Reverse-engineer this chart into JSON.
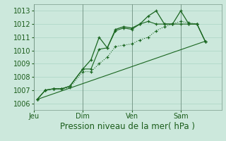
{
  "background_color": "#cce8dc",
  "plot_bg_color": "#cce8dc",
  "grid_color": "#aad4c4",
  "line_color": "#1a6620",
  "ylim": [
    1005.5,
    1013.5
  ],
  "yticks": [
    1006,
    1007,
    1008,
    1009,
    1010,
    1011,
    1012,
    1013
  ],
  "xlabel": "Pression niveau de la mer( hPa )",
  "xlabel_fontsize": 8.5,
  "tick_fontsize": 7,
  "figsize": [
    3.2,
    2.0
  ],
  "dpi": 100,
  "day_positions": [
    0,
    3,
    6,
    9
  ],
  "day_labels": [
    "Jeu",
    "Dim",
    "Ven",
    "Sam"
  ],
  "xlim": [
    0,
    11.5
  ],
  "series1_x": [
    0.2,
    0.7,
    1.2,
    1.7,
    2.2,
    3.0,
    3.5,
    4.0,
    4.5,
    5.0,
    5.5,
    6.0,
    6.5,
    7.0,
    7.5,
    8.0,
    8.5,
    9.0,
    9.5,
    10.0,
    10.5
  ],
  "series1_y": [
    1006.3,
    1007.0,
    1007.1,
    1007.1,
    1007.3,
    1008.6,
    1009.3,
    1011.0,
    1010.2,
    1011.6,
    1011.8,
    1011.7,
    1012.0,
    1012.6,
    1013.0,
    1012.0,
    1012.0,
    1013.0,
    1012.0,
    1012.0,
    1010.7
  ],
  "series2_x": [
    0.2,
    0.7,
    1.2,
    1.7,
    2.2,
    3.0,
    3.5,
    4.0,
    4.5,
    5.0,
    5.5,
    6.0,
    6.5,
    7.0,
    7.5,
    8.0,
    8.5,
    9.0,
    9.5,
    10.0,
    10.5
  ],
  "series2_y": [
    1006.3,
    1007.0,
    1007.1,
    1007.1,
    1007.3,
    1008.6,
    1008.6,
    1010.1,
    1010.2,
    1011.5,
    1011.7,
    1011.6,
    1012.0,
    1012.2,
    1012.0,
    1012.0,
    1012.0,
    1012.0,
    1012.0,
    1012.0,
    1010.7
  ],
  "series3_x": [
    0.2,
    0.7,
    1.2,
    1.7,
    2.2,
    3.0,
    3.5,
    4.0,
    4.5,
    5.0,
    5.5,
    6.0,
    6.5,
    7.0,
    7.5,
    8.0,
    8.5,
    9.0,
    9.5,
    10.0,
    10.5
  ],
  "series3_y": [
    1006.3,
    1007.0,
    1007.1,
    1007.1,
    1007.2,
    1008.4,
    1008.4,
    1009.0,
    1009.5,
    1010.3,
    1010.4,
    1010.5,
    1010.8,
    1011.0,
    1011.5,
    1011.8,
    1012.0,
    1012.2,
    1012.1,
    1012.0,
    1010.7
  ],
  "series4_x": [
    0.2,
    10.5
  ],
  "series4_y": [
    1006.3,
    1010.7
  ]
}
